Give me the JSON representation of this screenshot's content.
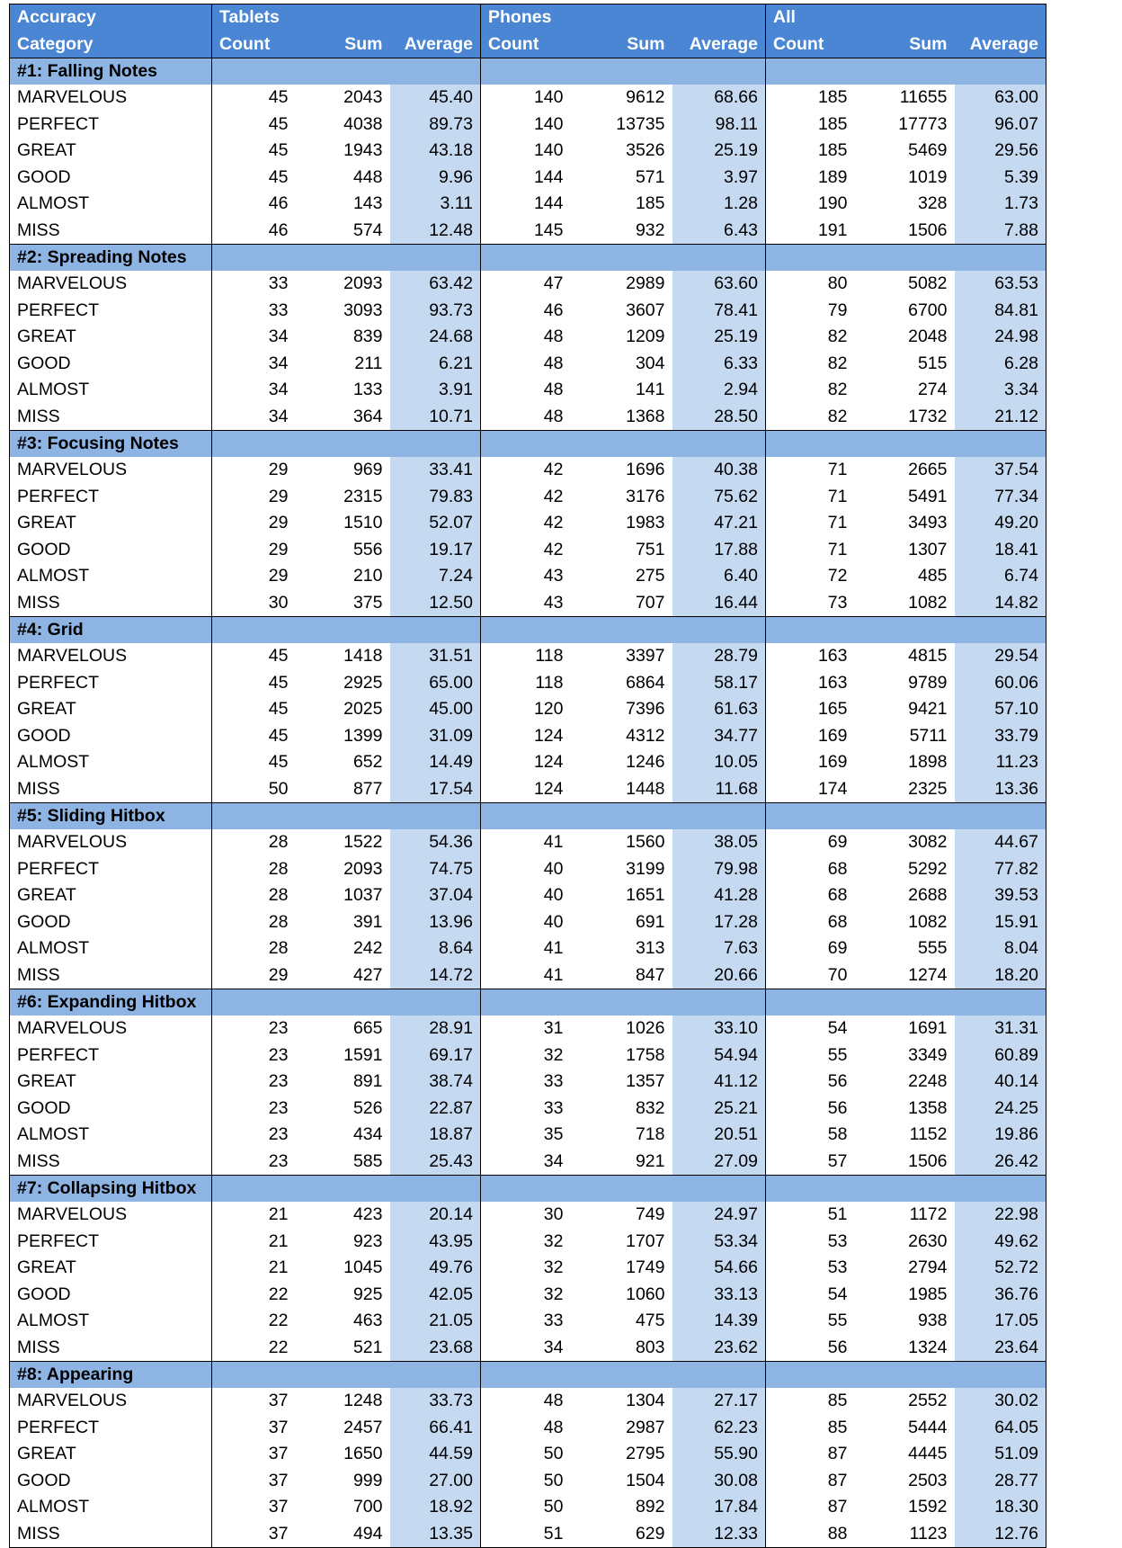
{
  "headers": {
    "row1": [
      "Accuracy",
      "Tablets",
      "",
      "",
      "Phones",
      "",
      "",
      "All",
      "",
      ""
    ],
    "row2": [
      "Category",
      "Count",
      "Sum",
      "Average",
      "Count",
      "Sum",
      "Average",
      "Count",
      "Sum",
      "Average"
    ]
  },
  "sections": [
    {
      "title": "#1: Falling Notes",
      "rows": [
        [
          "MARVELOUS",
          "45",
          "2043",
          "45.40",
          "140",
          "9612",
          "68.66",
          "185",
          "11655",
          "63.00"
        ],
        [
          "PERFECT",
          "45",
          "4038",
          "89.73",
          "140",
          "13735",
          "98.11",
          "185",
          "17773",
          "96.07"
        ],
        [
          "GREAT",
          "45",
          "1943",
          "43.18",
          "140",
          "3526",
          "25.19",
          "185",
          "5469",
          "29.56"
        ],
        [
          "GOOD",
          "45",
          "448",
          "9.96",
          "144",
          "571",
          "3.97",
          "189",
          "1019",
          "5.39"
        ],
        [
          "ALMOST",
          "46",
          "143",
          "3.11",
          "144",
          "185",
          "1.28",
          "190",
          "328",
          "1.73"
        ],
        [
          "MISS",
          "46",
          "574",
          "12.48",
          "145",
          "932",
          "6.43",
          "191",
          "1506",
          "7.88"
        ]
      ]
    },
    {
      "title": "#2: Spreading Notes",
      "rows": [
        [
          "MARVELOUS",
          "33",
          "2093",
          "63.42",
          "47",
          "2989",
          "63.60",
          "80",
          "5082",
          "63.53"
        ],
        [
          "PERFECT",
          "33",
          "3093",
          "93.73",
          "46",
          "3607",
          "78.41",
          "79",
          "6700",
          "84.81"
        ],
        [
          "GREAT",
          "34",
          "839",
          "24.68",
          "48",
          "1209",
          "25.19",
          "82",
          "2048",
          "24.98"
        ],
        [
          "GOOD",
          "34",
          "211",
          "6.21",
          "48",
          "304",
          "6.33",
          "82",
          "515",
          "6.28"
        ],
        [
          "ALMOST",
          "34",
          "133",
          "3.91",
          "48",
          "141",
          "2.94",
          "82",
          "274",
          "3.34"
        ],
        [
          "MISS",
          "34",
          "364",
          "10.71",
          "48",
          "1368",
          "28.50",
          "82",
          "1732",
          "21.12"
        ]
      ]
    },
    {
      "title": "#3: Focusing Notes",
      "rows": [
        [
          "MARVELOUS",
          "29",
          "969",
          "33.41",
          "42",
          "1696",
          "40.38",
          "71",
          "2665",
          "37.54"
        ],
        [
          "PERFECT",
          "29",
          "2315",
          "79.83",
          "42",
          "3176",
          "75.62",
          "71",
          "5491",
          "77.34"
        ],
        [
          "GREAT",
          "29",
          "1510",
          "52.07",
          "42",
          "1983",
          "47.21",
          "71",
          "3493",
          "49.20"
        ],
        [
          "GOOD",
          "29",
          "556",
          "19.17",
          "42",
          "751",
          "17.88",
          "71",
          "1307",
          "18.41"
        ],
        [
          "ALMOST",
          "29",
          "210",
          "7.24",
          "43",
          "275",
          "6.40",
          "72",
          "485",
          "6.74"
        ],
        [
          "MISS",
          "30",
          "375",
          "12.50",
          "43",
          "707",
          "16.44",
          "73",
          "1082",
          "14.82"
        ]
      ]
    },
    {
      "title": "#4: Grid",
      "rows": [
        [
          "MARVELOUS",
          "45",
          "1418",
          "31.51",
          "118",
          "3397",
          "28.79",
          "163",
          "4815",
          "29.54"
        ],
        [
          "PERFECT",
          "45",
          "2925",
          "65.00",
          "118",
          "6864",
          "58.17",
          "163",
          "9789",
          "60.06"
        ],
        [
          "GREAT",
          "45",
          "2025",
          "45.00",
          "120",
          "7396",
          "61.63",
          "165",
          "9421",
          "57.10"
        ],
        [
          "GOOD",
          "45",
          "1399",
          "31.09",
          "124",
          "4312",
          "34.77",
          "169",
          "5711",
          "33.79"
        ],
        [
          "ALMOST",
          "45",
          "652",
          "14.49",
          "124",
          "1246",
          "10.05",
          "169",
          "1898",
          "11.23"
        ],
        [
          "MISS",
          "50",
          "877",
          "17.54",
          "124",
          "1448",
          "11.68",
          "174",
          "2325",
          "13.36"
        ]
      ]
    },
    {
      "title": "#5: Sliding Hitbox",
      "rows": [
        [
          "MARVELOUS",
          "28",
          "1522",
          "54.36",
          "41",
          "1560",
          "38.05",
          "69",
          "3082",
          "44.67"
        ],
        [
          "PERFECT",
          "28",
          "2093",
          "74.75",
          "40",
          "3199",
          "79.98",
          "68",
          "5292",
          "77.82"
        ],
        [
          "GREAT",
          "28",
          "1037",
          "37.04",
          "40",
          "1651",
          "41.28",
          "68",
          "2688",
          "39.53"
        ],
        [
          "GOOD",
          "28",
          "391",
          "13.96",
          "40",
          "691",
          "17.28",
          "68",
          "1082",
          "15.91"
        ],
        [
          "ALMOST",
          "28",
          "242",
          "8.64",
          "41",
          "313",
          "7.63",
          "69",
          "555",
          "8.04"
        ],
        [
          "MISS",
          "29",
          "427",
          "14.72",
          "41",
          "847",
          "20.66",
          "70",
          "1274",
          "18.20"
        ]
      ]
    },
    {
      "title": "#6: Expanding Hitbox",
      "rows": [
        [
          "MARVELOUS",
          "23",
          "665",
          "28.91",
          "31",
          "1026",
          "33.10",
          "54",
          "1691",
          "31.31"
        ],
        [
          "PERFECT",
          "23",
          "1591",
          "69.17",
          "32",
          "1758",
          "54.94",
          "55",
          "3349",
          "60.89"
        ],
        [
          "GREAT",
          "23",
          "891",
          "38.74",
          "33",
          "1357",
          "41.12",
          "56",
          "2248",
          "40.14"
        ],
        [
          "GOOD",
          "23",
          "526",
          "22.87",
          "33",
          "832",
          "25.21",
          "56",
          "1358",
          "24.25"
        ],
        [
          "ALMOST",
          "23",
          "434",
          "18.87",
          "35",
          "718",
          "20.51",
          "58",
          "1152",
          "19.86"
        ],
        [
          "MISS",
          "23",
          "585",
          "25.43",
          "34",
          "921",
          "27.09",
          "57",
          "1506",
          "26.42"
        ]
      ]
    },
    {
      "title": "#7: Collapsing Hitbox",
      "rows": [
        [
          "MARVELOUS",
          "21",
          "423",
          "20.14",
          "30",
          "749",
          "24.97",
          "51",
          "1172",
          "22.98"
        ],
        [
          "PERFECT",
          "21",
          "923",
          "43.95",
          "32",
          "1707",
          "53.34",
          "53",
          "2630",
          "49.62"
        ],
        [
          "GREAT",
          "21",
          "1045",
          "49.76",
          "32",
          "1749",
          "54.66",
          "53",
          "2794",
          "52.72"
        ],
        [
          "GOOD",
          "22",
          "925",
          "42.05",
          "32",
          "1060",
          "33.13",
          "54",
          "1985",
          "36.76"
        ],
        [
          "ALMOST",
          "22",
          "463",
          "21.05",
          "33",
          "475",
          "14.39",
          "55",
          "938",
          "17.05"
        ],
        [
          "MISS",
          "22",
          "521",
          "23.68",
          "34",
          "803",
          "23.62",
          "56",
          "1324",
          "23.64"
        ]
      ]
    },
    {
      "title": "#8: Appearing",
      "rows": [
        [
          "MARVELOUS",
          "37",
          "1248",
          "33.73",
          "48",
          "1304",
          "27.17",
          "85",
          "2552",
          "30.02"
        ],
        [
          "PERFECT",
          "37",
          "2457",
          "66.41",
          "48",
          "2987",
          "62.23",
          "85",
          "5444",
          "64.05"
        ],
        [
          "GREAT",
          "37",
          "1650",
          "44.59",
          "50",
          "2795",
          "55.90",
          "87",
          "4445",
          "51.09"
        ],
        [
          "GOOD",
          "37",
          "999",
          "27.00",
          "50",
          "1504",
          "30.08",
          "87",
          "2503",
          "28.77"
        ],
        [
          "ALMOST",
          "37",
          "700",
          "18.92",
          "50",
          "892",
          "17.84",
          "87",
          "1592",
          "18.30"
        ],
        [
          "MISS",
          "37",
          "494",
          "13.35",
          "51",
          "629",
          "12.33",
          "88",
          "1123",
          "12.76"
        ]
      ]
    }
  ]
}
